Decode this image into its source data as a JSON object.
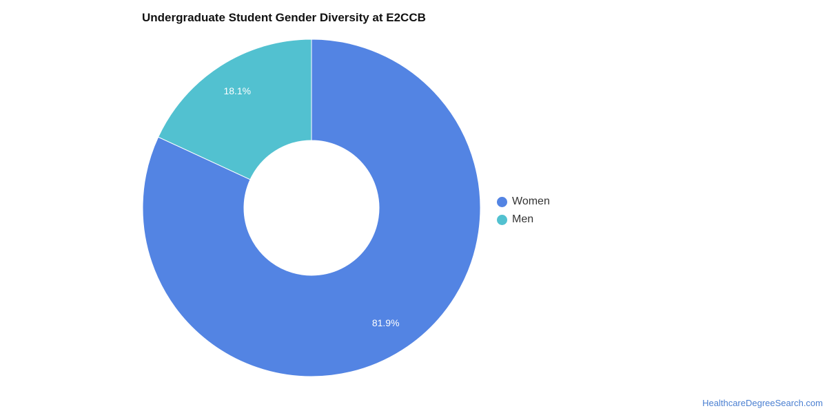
{
  "chart_data": {
    "type": "pie",
    "style": "donut",
    "title": "Undergraduate Student Gender Diversity at E2CCB",
    "series": [
      {
        "name": "Women",
        "value": 81.9,
        "label": "81.9%",
        "color": "#5384e3"
      },
      {
        "name": "Men",
        "value": 18.1,
        "label": "18.1%",
        "color": "#52c1d0"
      }
    ],
    "legend_position": "right"
  },
  "footer": {
    "source_link": "HealthcareDegreeSearch.com"
  }
}
